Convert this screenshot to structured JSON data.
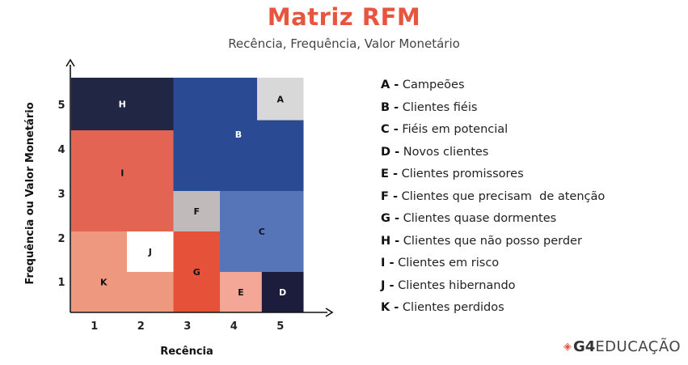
{
  "header": {
    "title": "Matriz RFM",
    "subtitle": "Recência, Frequência, Valor Monetário"
  },
  "axes": {
    "x_label": "Recência",
    "y_label": "Frequência ou Valor Monetário",
    "x_ticks": [
      "1",
      "2",
      "3",
      "4",
      "5"
    ],
    "y_ticks": [
      "1",
      "2",
      "3",
      "4",
      "5"
    ]
  },
  "colors": {
    "H": "#222645",
    "A": "#d8d8d8",
    "B": "#2a4b94",
    "I": "#e36452",
    "F": "#c0baba",
    "C": "#5674b8",
    "K": "#ee9880",
    "J": "#ffffff",
    "G": "#e55239",
    "E": "#f4a796",
    "D": "#1c1c3c",
    "title": "#e8553e",
    "brand_mark": "#e8553e"
  },
  "cells": [
    {
      "id": "H",
      "label": "H",
      "x0": 0,
      "x1": 2.2,
      "y0": 4.5,
      "y1": 5.8
    },
    {
      "id": "I",
      "label": "I",
      "x0": 0,
      "x1": 2.2,
      "y0": 2.0,
      "y1": 4.5
    },
    {
      "id": "K",
      "label": "K",
      "x0": 0,
      "x1": 2.2,
      "y0": 0,
      "y1": 2.0
    },
    {
      "id": "J",
      "label": "J",
      "x0": 1.2,
      "x1": 2.2,
      "y0": 1.0,
      "y1": 2.0
    },
    {
      "id": "B",
      "label": "B",
      "x0": 2.2,
      "x1": 5.0,
      "y0": 3.0,
      "y1": 5.8
    },
    {
      "id": "A",
      "label": "A",
      "x0": 4.0,
      "x1": 5.0,
      "y0": 4.75,
      "y1": 5.8
    },
    {
      "id": "F",
      "label": "F",
      "x0": 2.2,
      "x1": 3.2,
      "y0": 2.0,
      "y1": 3.0
    },
    {
      "id": "C",
      "label": "C",
      "x0": 3.2,
      "x1": 5.0,
      "y0": 1.0,
      "y1": 3.0
    },
    {
      "id": "G",
      "label": "G",
      "x0": 2.2,
      "x1": 3.2,
      "y0": 0,
      "y1": 2.0
    },
    {
      "id": "E",
      "label": "E",
      "x0": 3.2,
      "x1": 4.1,
      "y0": 0,
      "y1": 1.0
    },
    {
      "id": "D",
      "label": "D",
      "x0": 4.1,
      "x1": 5.0,
      "y0": 0,
      "y1": 1.0
    }
  ],
  "legend": [
    {
      "code": "A -",
      "text": " Campeões"
    },
    {
      "code": "B -",
      "text": " Clientes fiéis"
    },
    {
      "code": "C -",
      "text": " Fiéis em potencial"
    },
    {
      "code": "D -",
      "text": " Novos clientes"
    },
    {
      "code": "E -",
      "text": " Clientes promissores"
    },
    {
      "code": "F -",
      "text": " Clientes que precisam  de atenção"
    },
    {
      "code": "G -",
      "text": " Clientes quase dormentes"
    },
    {
      "code": "H -",
      "text": " Clientes que não posso perder"
    },
    {
      "code": "I -",
      "text": " Clientes em risco"
    },
    {
      "code": "J -",
      "text": " Clientes hibernando"
    },
    {
      "code": "K -",
      "text": " Clientes perdidos"
    }
  ],
  "brand": {
    "mark": "◈",
    "bold": "G4",
    "rest": "EDUCAÇÃO"
  }
}
